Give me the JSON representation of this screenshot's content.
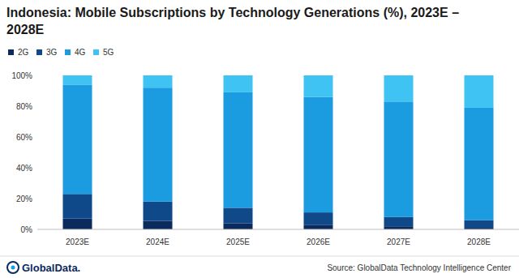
{
  "chart_data": {
    "type": "bar",
    "stacked": true,
    "title": "Indonesia: Mobile Subscriptions by Technology Generations (%), 2023E – 2028E",
    "categories": [
      "2023E",
      "2024E",
      "2025E",
      "2026E",
      "2027E",
      "2028E"
    ],
    "series": [
      {
        "name": "2G",
        "color": "#0b2a5e",
        "values": [
          7,
          5.5,
          4,
          3,
          2,
          1
        ]
      },
      {
        "name": "3G",
        "color": "#10498a",
        "values": [
          16,
          12.5,
          10,
          8,
          6,
          5
        ]
      },
      {
        "name": "4G",
        "color": "#1b9be0",
        "values": [
          71,
          74,
          75,
          75,
          75,
          73
        ]
      },
      {
        "name": "5G",
        "color": "#3fc3f3",
        "values": [
          6,
          8,
          11,
          14,
          17,
          21
        ]
      }
    ],
    "ylim": [
      0,
      100
    ],
    "yticks": [
      {
        "value": 0,
        "label": "0%"
      },
      {
        "value": 20,
        "label": "20%"
      },
      {
        "value": 40,
        "label": "40%"
      },
      {
        "value": 60,
        "label": "60%"
      },
      {
        "value": 80,
        "label": "80%"
      },
      {
        "value": 100,
        "label": "100%"
      }
    ],
    "grid": false,
    "legend": "top-left",
    "source": "Source: GlobalData Technology Intelligence Center",
    "logo": "GlobalData."
  }
}
